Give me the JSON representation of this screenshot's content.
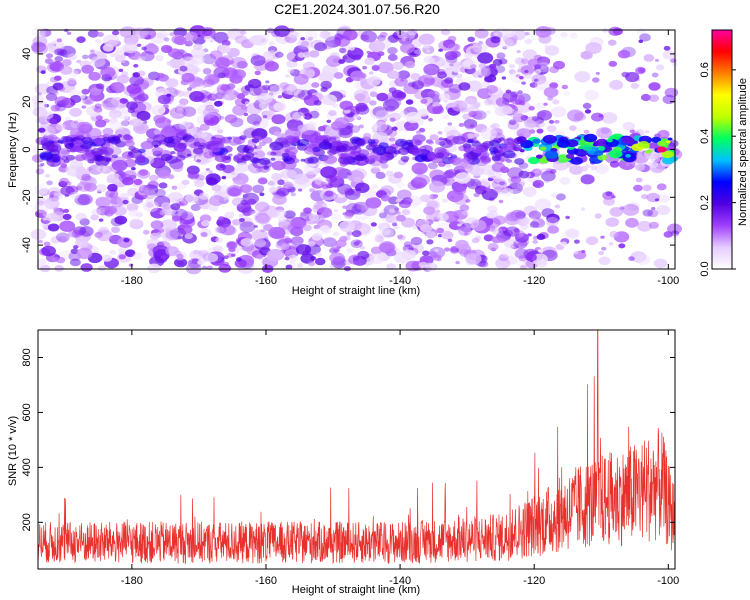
{
  "title": "C2E1.2024.301.07.56.R20",
  "colors": {
    "snr_line": "#e8312c",
    "axis": "#000000",
    "spectrogram_low": "#ffffff",
    "spectrogram_mid": "#7b00ff"
  },
  "chart_data": [
    {
      "type": "heatmap",
      "title": "C2E1.2024.301.07.56.R20",
      "xlabel": "Height of straight line (km)",
      "ylabel": "Frequency (Hz)",
      "xlim": [
        -194,
        -99
      ],
      "ylim": [
        -50,
        50
      ],
      "x_ticks": [
        -180,
        -160,
        -140,
        -120,
        -100
      ],
      "y_ticks": [
        -40,
        -20,
        0,
        20,
        40
      ],
      "colorbar": {
        "label": "Normalized spectral amplitude",
        "range": [
          0.0,
          0.72
        ],
        "ticks": [
          0.0,
          0.2,
          0.4,
          0.6
        ],
        "tick_labels": [
          "0.0",
          "0.2",
          "0.4",
          "0.6"
        ],
        "colormap": [
          "#ffffff",
          "#e6ccff",
          "#a040ff",
          "#5000e0",
          "#0000ff",
          "#00c0ff",
          "#00ff60",
          "#c0ff00",
          "#ffff00",
          "#ff8000",
          "#ff0000",
          "#ff00a0"
        ]
      },
      "features": [
        {
          "description": "broadband purple noise background",
          "x": [
            -194,
            -99
          ],
          "y": [
            -50,
            50
          ],
          "value": 0.05
        },
        {
          "description": "narrow band near 0 Hz",
          "x": [
            -122,
            -101
          ],
          "y": [
            -3,
            3
          ],
          "peak_value": 0.7,
          "peak_x": -101
        }
      ]
    },
    {
      "type": "line",
      "xlabel": "Height of straight line (km)",
      "ylabel": "SNR (10 * v/v)",
      "xlim": [
        -194,
        -99
      ],
      "ylim": [
        30,
        900
      ],
      "x_ticks": [
        -180,
        -160,
        -140,
        -120,
        -100
      ],
      "y_ticks": [
        200,
        400,
        600,
        800
      ],
      "series": [
        {
          "color": "#e8312c",
          "x_step": 0.05,
          "baseline_profile": {
            "x": [
              -194,
              -170,
              -140,
              -125,
              -118,
              -112,
              -106,
              -101,
              -99.5
            ],
            "mean": [
              140,
              140,
              140,
              160,
              230,
              300,
              330,
              380,
              250
            ]
          },
          "max_value": 900,
          "max_x": -110.5
        }
      ]
    }
  ]
}
